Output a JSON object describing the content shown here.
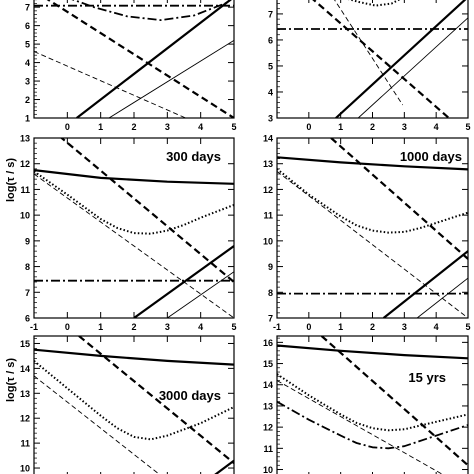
{
  "chart_data": [
    {
      "type": "line",
      "xlim": [
        -1,
        5
      ],
      "ylim": [
        1,
        7.55
      ],
      "xticks": [],
      "yticks": [
        "1",
        "2",
        "3",
        "4",
        "5",
        "6",
        "7"
      ],
      "ylabel": "",
      "title": "",
      "series": [
        {
          "style": "thick-solid",
          "x": [
            0.28,
            5
          ],
          "y": [
            1,
            7.55
          ]
        },
        {
          "style": "thin-solid",
          "x": [
            1.25,
            5
          ],
          "y": [
            1,
            5.2
          ]
        },
        {
          "style": "thick-dashed",
          "x": [
            -0.7,
            5
          ],
          "y": [
            7.55,
            1
          ]
        },
        {
          "style": "thin-dashed",
          "x": [
            -1,
            3.55
          ],
          "y": [
            4.6,
            1
          ]
        },
        {
          "style": "thick-dashdot",
          "x": [
            -1,
            5
          ],
          "y": [
            7.08,
            7.08
          ]
        },
        {
          "style": "thick-dashdot",
          "x": [
            -0.05,
            0.8,
            1.8,
            2.8,
            3.8,
            4.8,
            5
          ],
          "y": [
            7.55,
            7.0,
            6.5,
            6.3,
            6.55,
            7.25,
            7.55
          ]
        }
      ]
    },
    {
      "type": "line",
      "xlim": [
        -1,
        5
      ],
      "ylim": [
        3,
        7.65
      ],
      "xticks": [],
      "yticks": [
        "3",
        "4",
        "5",
        "6",
        "7"
      ],
      "ylabel": "",
      "title": "",
      "series": [
        {
          "style": "thick-solid",
          "x": [
            0.85,
            5
          ],
          "y": [
            3,
            7.65
          ]
        },
        {
          "style": "thin-solid",
          "x": [
            1.55,
            5
          ],
          "y": [
            3,
            6.85
          ]
        },
        {
          "style": "thick-dashed",
          "x": [
            0.05,
            4.4
          ],
          "y": [
            7.65,
            3
          ]
        },
        {
          "style": "thin-dashed",
          "x": [
            0.75,
            2.95
          ],
          "y": [
            7.65,
            3.5
          ]
        },
        {
          "style": "thick-dashdot",
          "x": [
            -1,
            5
          ],
          "y": [
            6.42,
            6.42
          ]
        },
        {
          "style": "thick-dotted",
          "x": [
            1.0,
            1.6,
            2.1,
            2.6,
            3.0
          ],
          "y": [
            7.65,
            7.45,
            7.32,
            7.4,
            7.65
          ]
        }
      ]
    },
    {
      "type": "line",
      "xlim": [
        -1,
        5
      ],
      "ylim": [
        6,
        13
      ],
      "xticks": [
        "-1",
        "0",
        "1",
        "2",
        "3",
        "4",
        "5"
      ],
      "yticks": [
        "6",
        "7",
        "8",
        "9",
        "10",
        "11",
        "12",
        "13"
      ],
      "ylabel": "log(τ / s)",
      "title": "300 days",
      "series": [
        {
          "style": "thick-solid",
          "x": [
            -1,
            1,
            3,
            5
          ],
          "y": [
            11.75,
            11.45,
            11.3,
            11.22
          ]
        },
        {
          "style": "thick-dotted",
          "x": [
            -1,
            0,
            1,
            1.5,
            2,
            2.5,
            3,
            3.5,
            4,
            5
          ],
          "y": [
            11.7,
            10.8,
            9.85,
            9.5,
            9.3,
            9.28,
            9.4,
            9.62,
            9.9,
            10.4
          ]
        },
        {
          "style": "thick-dashed",
          "x": [
            -1,
            5
          ],
          "y": [
            13.9,
            7.4
          ]
        },
        {
          "style": "thin-dashed",
          "x": [
            -1,
            5
          ],
          "y": [
            11.6,
            6
          ]
        },
        {
          "style": "thick-solid",
          "x": [
            2.0,
            5
          ],
          "y": [
            6,
            8.8
          ]
        },
        {
          "style": "thin-solid",
          "x": [
            3.0,
            5
          ],
          "y": [
            6,
            7.8
          ]
        },
        {
          "style": "thick-dashdot",
          "x": [
            -1,
            5
          ],
          "y": [
            7.45,
            7.45
          ]
        }
      ]
    },
    {
      "type": "line",
      "xlim": [
        -1,
        5
      ],
      "ylim": [
        7,
        14
      ],
      "xticks": [
        "-1",
        "0",
        "1",
        "2",
        "3",
        "4",
        "5"
      ],
      "yticks": [
        "7",
        "8",
        "9",
        "10",
        "11",
        "12",
        "13",
        "14"
      ],
      "ylabel": "",
      "title": "1000 days",
      "series": [
        {
          "style": "thick-solid",
          "x": [
            -1,
            1,
            3,
            5
          ],
          "y": [
            13.25,
            13.05,
            12.9,
            12.78
          ]
        },
        {
          "style": "thick-dotted",
          "x": [
            -1,
            0,
            1,
            1.5,
            2,
            2.5,
            3,
            3.5,
            4,
            5
          ],
          "y": [
            12.8,
            11.8,
            10.95,
            10.6,
            10.4,
            10.32,
            10.35,
            10.5,
            10.7,
            11.1
          ]
        },
        {
          "style": "thick-dashed",
          "x": [
            0.7,
            5
          ],
          "y": [
            14,
            9.3
          ]
        },
        {
          "style": "thin-dashed",
          "x": [
            -1,
            5
          ],
          "y": [
            12.7,
            7
          ]
        },
        {
          "style": "thick-solid",
          "x": [
            2.35,
            5
          ],
          "y": [
            7,
            9.6
          ]
        },
        {
          "style": "thin-solid",
          "x": [
            3.4,
            5
          ],
          "y": [
            7,
            8.55
          ]
        },
        {
          "style": "thick-dashdot",
          "x": [
            -1,
            5
          ],
          "y": [
            7.95,
            7.95
          ]
        }
      ]
    },
    {
      "type": "line",
      "xlim": [
        -1,
        5
      ],
      "ylim": [
        9.6,
        15.3
      ],
      "xticks": [],
      "yticks": [
        "10",
        "11",
        "12",
        "13",
        "14",
        "15"
      ],
      "ylabel": "log(τ / s)",
      "title": "3000 days",
      "series": [
        {
          "style": "thick-solid",
          "x": [
            -1,
            1,
            3,
            5
          ],
          "y": [
            14.75,
            14.5,
            14.3,
            14.15
          ]
        },
        {
          "style": "thick-dotted",
          "x": [
            -1,
            0,
            1,
            1.5,
            2,
            2.5,
            3,
            4,
            5
          ],
          "y": [
            14.3,
            13.2,
            12.1,
            11.6,
            11.25,
            11.15,
            11.3,
            11.8,
            12.45
          ]
        },
        {
          "style": "thick-dashed",
          "x": [
            0.35,
            5
          ],
          "y": [
            15.3,
            10.2
          ]
        },
        {
          "style": "thin-dashed",
          "x": [
            -1,
            2.9
          ],
          "y": [
            13.7,
            9.6
          ]
        },
        {
          "style": "thick-solid",
          "x": [
            4.3,
            5
          ],
          "y": [
            9.6,
            10.3
          ]
        }
      ]
    },
    {
      "type": "line",
      "xlim": [
        -1,
        5
      ],
      "ylim": [
        9.6,
        16.3
      ],
      "xticks": [],
      "yticks": [
        "10",
        "11",
        "12",
        "13",
        "14",
        "15",
        "16"
      ],
      "ylabel": "",
      "title": "15 yrs",
      "series": [
        {
          "style": "thick-solid",
          "x": [
            -1,
            1,
            3,
            5
          ],
          "y": [
            15.85,
            15.6,
            15.4,
            15.25
          ]
        },
        {
          "style": "thick-dotted",
          "x": [
            -1,
            0,
            1,
            1.5,
            2,
            2.5,
            3,
            4,
            5
          ],
          "y": [
            14.5,
            13.5,
            12.6,
            12.2,
            11.95,
            11.85,
            11.9,
            12.25,
            12.6
          ]
        },
        {
          "style": "thick-dashdot",
          "x": [
            -1,
            0,
            1,
            1.5,
            2,
            2.5,
            3,
            4,
            5
          ],
          "y": [
            13.2,
            12.35,
            11.6,
            11.25,
            11.05,
            11.0,
            11.1,
            11.6,
            12.1
          ]
        },
        {
          "style": "thick-dashed",
          "x": [
            0.4,
            5
          ],
          "y": [
            16.3,
            10.2
          ]
        },
        {
          "style": "thin-dashed",
          "x": [
            -1,
            4.4
          ],
          "y": [
            14.2,
            9.6
          ]
        }
      ]
    }
  ]
}
